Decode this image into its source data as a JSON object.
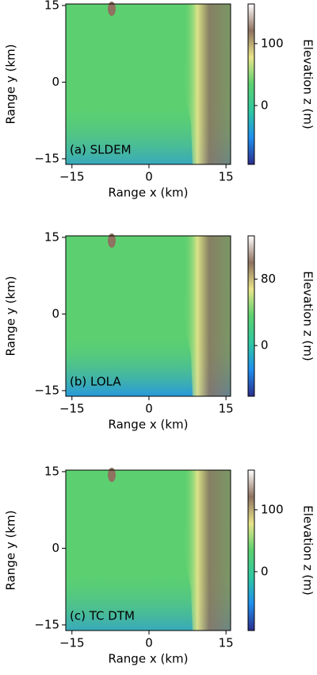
{
  "chart_data": [
    {
      "type": "heatmap",
      "annotation": "(a) SLDEM",
      "xlabel": "Range x (km)",
      "ylabel": "Range y (km)",
      "xlim": [
        -16.2,
        15.9
      ],
      "ylim": [
        -16.1,
        15.3
      ],
      "xticks": [
        {
          "value": -15,
          "label": "−15"
        },
        0,
        15
      ],
      "yticks": [
        {
          "value": -15,
          "label": "−15"
        },
        0,
        15
      ],
      "colorbar": {
        "label": "Elevation z (m)",
        "lim": [
          -95,
          164
        ],
        "ticks": [
          0,
          100
        ],
        "colors": [
          "#2b2e8c",
          "#1f8fef",
          "#2fc8a0",
          "#5cd070",
          "#e9e58a",
          "#8f7260",
          "#ffffff"
        ]
      }
    },
    {
      "type": "heatmap",
      "annotation": "(b) LOLA",
      "xlabel": "Range x (km)",
      "ylabel": "Range y (km)",
      "xlim": [
        -16.2,
        15.9
      ],
      "ylim": [
        -16.1,
        15.3
      ],
      "xticks": [
        {
          "value": -15,
          "label": "−15"
        },
        0,
        15
      ],
      "yticks": [
        {
          "value": -15,
          "label": "−15"
        },
        0,
        15
      ],
      "colorbar": {
        "label": "Elevation z (m)",
        "lim": [
          -61,
          132
        ],
        "ticks": [
          0,
          80
        ],
        "colors": [
          "#2b2e8c",
          "#1f8fef",
          "#2fc8a0",
          "#5cd070",
          "#e9e58a",
          "#8f7260",
          "#ffffff"
        ]
      }
    },
    {
      "type": "heatmap",
      "annotation": "(c) TC DTM",
      "xlabel": "Range x (km)",
      "ylabel": "Range y (km)",
      "xlim": [
        -16.2,
        15.9
      ],
      "ylim": [
        -16.1,
        15.3
      ],
      "xticks": [
        {
          "value": -15,
          "label": "−15"
        },
        0,
        15
      ],
      "yticks": [
        {
          "value": -15,
          "label": "−15"
        },
        0,
        15
      ],
      "colorbar": {
        "label": "Elevation z (m)",
        "lim": [
          -95,
          164
        ],
        "ticks": [
          0,
          100
        ],
        "colors": [
          "#2b2e8c",
          "#1f8fef",
          "#2fc8a0",
          "#5cd070",
          "#e9e58a",
          "#8f7260",
          "#ffffff"
        ]
      }
    }
  ]
}
